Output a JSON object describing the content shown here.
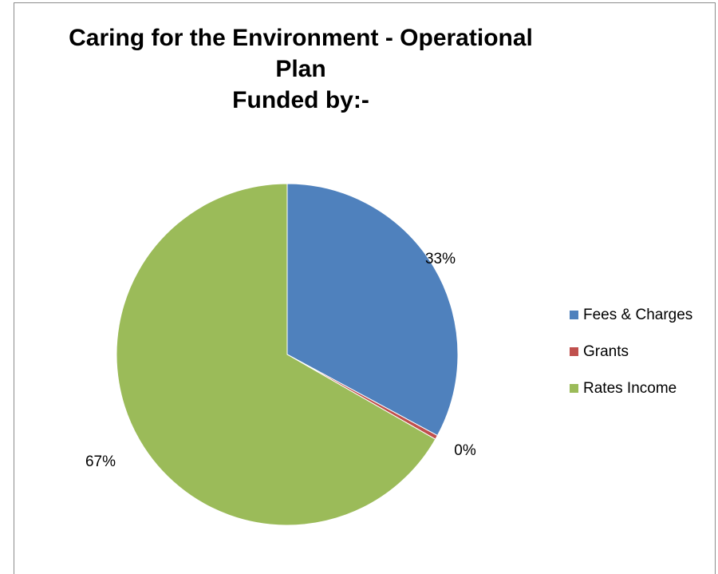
{
  "chart_data": {
    "type": "pie",
    "title_lines": [
      "Caring for the Environment - Operational",
      "Plan",
      "Funded by:-"
    ],
    "slices": [
      {
        "name": "Fees & Charges",
        "value": 33,
        "label": "33%",
        "color": "#4f81bd"
      },
      {
        "name": "Grants",
        "value": 0.4,
        "label": "0%",
        "color": "#c0504d"
      },
      {
        "name": "Rates Income",
        "value": 67,
        "label": "67%",
        "color": "#9bbb59"
      }
    ],
    "legend_position": "right"
  }
}
